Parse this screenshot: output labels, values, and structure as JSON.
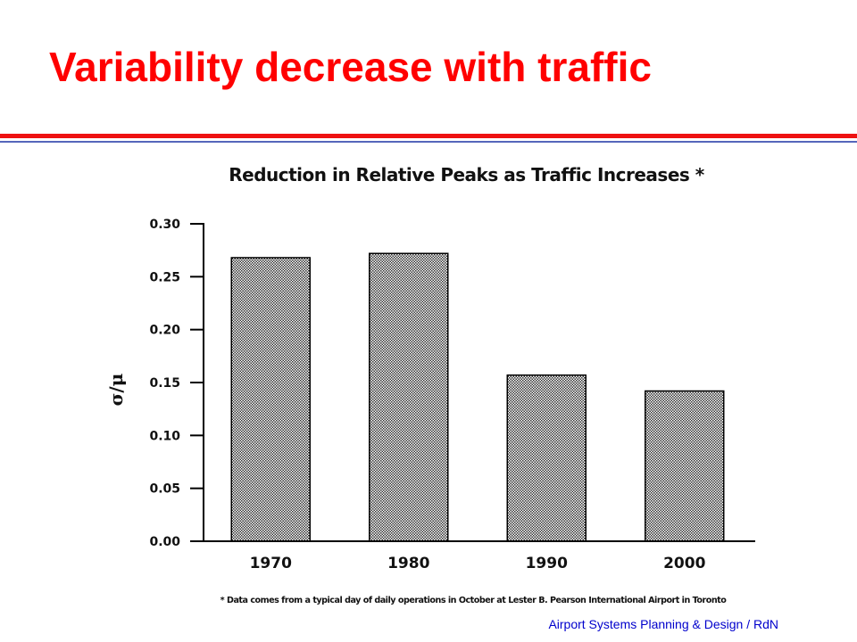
{
  "slide": {
    "title": "Variability decrease with traffic",
    "footer": "Airport Systems Planning & Design / RdN"
  },
  "colors": {
    "title": "#ff0000",
    "rule_red": "#ee1111",
    "rule_blue": "#5566bb",
    "footer": "#0000cc",
    "bar_outline": "#000000",
    "bar_pattern_dot": "#333333"
  },
  "chart_data": {
    "type": "bar",
    "title": "Reduction in Relative Peaks as Traffic Increases *",
    "ylabel": "σ/μ",
    "xlabel": "",
    "categories": [
      "1970",
      "1980",
      "1990",
      "2000"
    ],
    "values": [
      0.268,
      0.272,
      0.157,
      0.142
    ],
    "ylim": [
      0,
      0.3
    ],
    "yticks": [
      "0.00",
      "0.05",
      "0.10",
      "0.15",
      "0.20",
      "0.25",
      "0.30"
    ],
    "grid": false,
    "bar_fill": "dotted-pattern",
    "footnote": "* Data comes from a typical day of daily operations in October at Lester B. Pearson International Airport in Toronto"
  }
}
